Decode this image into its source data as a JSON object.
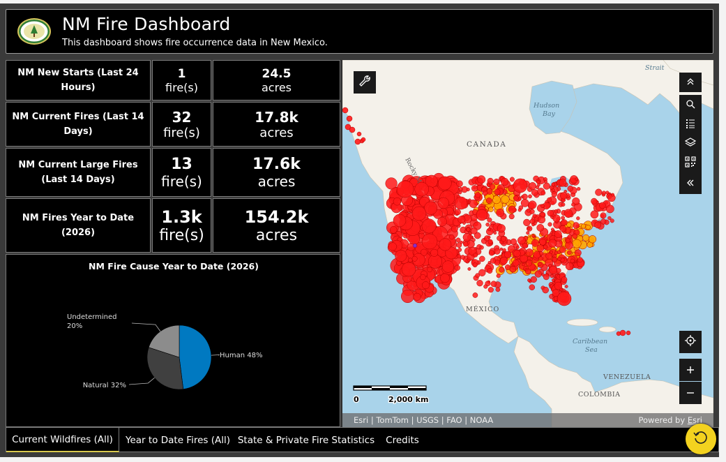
{
  "header": {
    "title": "NM Fire Dashboard",
    "subtitle": "This dashboard shows fire occurrence data in New Mexico."
  },
  "stats": [
    {
      "label": "NM New Starts (Last 24 Hours)",
      "fires": "1",
      "fires_unit": "fire(s)",
      "acres": "24.5",
      "acres_unit": "acres"
    },
    {
      "label": "NM Current Fires (Last 14 Days)",
      "fires": "32",
      "fires_unit": "fire(s)",
      "acres": "17.8k",
      "acres_unit": "acres"
    },
    {
      "label": "NM Current Large Fires (Last 14 Days)",
      "fires": "13",
      "fires_unit": "fire(s)",
      "acres": "17.6k",
      "acres_unit": "acres"
    },
    {
      "label": "NM Fires Year to Date (2026)",
      "fires": "1.3k",
      "fires_unit": "fire(s)",
      "acres": "154.2k",
      "acres_unit": "acres"
    }
  ],
  "chart_data": {
    "type": "pie",
    "title": "NM Fire Cause Year to Date (2026)",
    "categories": [
      "Human",
      "Natural",
      "Undetermined"
    ],
    "values": [
      48,
      32,
      20
    ],
    "labels": [
      "Human 48%",
      "Natural 32%",
      "Undetermined 20%"
    ],
    "colors": [
      "#0079c1",
      "#404040",
      "#8c8c8c"
    ]
  },
  "map": {
    "labels": {
      "canada": "CANADA",
      "hudson": "Hudson",
      "bay": "Bay",
      "strait": "Strait",
      "rocky": "Rocky M",
      "mexico": "MÉXICO",
      "caribbean": "Caribbean",
      "sea": "Sea",
      "venezuela": "VENEZUELA",
      "colombia": "COLOMBIA"
    },
    "scale": {
      "start": "0",
      "end": "2,000 km"
    },
    "attribution": "Esri | TomTom | USGS | FAO | NOAA",
    "powered_by": "Powered by",
    "powered_by_link": "Esri",
    "icons": [
      "wrench-icon",
      "collapse-up-icon",
      "search-icon",
      "legend-icon",
      "layers-icon",
      "qr-icon",
      "collapse-left-icon",
      "locate-icon",
      "zoom-in-icon",
      "zoom-out-icon"
    ],
    "fire_colors": {
      "fire": "#ff1a1a",
      "perimeter": "#ffa500",
      "small": "#7b2bd9"
    }
  },
  "tabs": [
    {
      "label": "Current Wildfires (All)",
      "active": true
    },
    {
      "label": "Year to Date Fires (All)",
      "active": false
    },
    {
      "label": "State & Private Fire Statistics",
      "active": false
    },
    {
      "label": "Credits",
      "active": false
    }
  ],
  "accent": "#d9c94c"
}
